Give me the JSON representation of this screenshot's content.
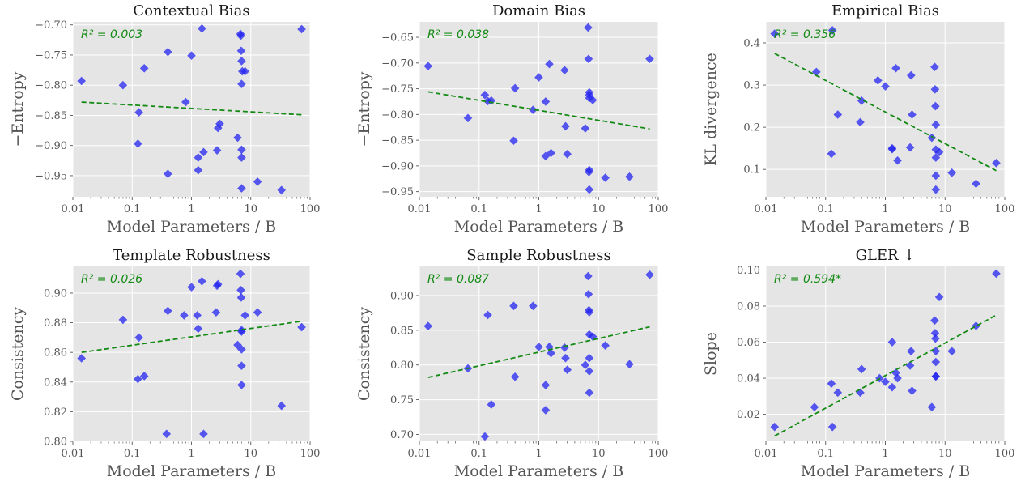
{
  "figure": {
    "colors": {
      "point": "#2323f0",
      "trend": "#138a13",
      "panel_bg": "#e5e5e5",
      "grid": "#ffffff"
    }
  },
  "chart_data": [
    {
      "type": "scatter",
      "title": "Contextual Bias",
      "xlabel": "Model Parameters / B",
      "ylabel": "−Entropy",
      "x_scale": "log",
      "xlim": [
        0.01,
        100
      ],
      "ylim": [
        -0.985,
        -0.695
      ],
      "xticks": [
        0.01,
        0.1,
        1,
        10,
        100
      ],
      "xtick_labels": [
        "0.01",
        "0.1",
        "1",
        "10",
        "100"
      ],
      "yticks": [
        -0.95,
        -0.9,
        -0.85,
        -0.8,
        -0.75,
        -0.7
      ],
      "ytick_labels": [
        "−0.95",
        "−0.90",
        "−0.85",
        "−0.80",
        "−0.75",
        "−0.70"
      ],
      "annotation": "R² = 0.003",
      "trend": {
        "x": [
          0.014,
          72
        ],
        "y": [
          -0.828,
          -0.849
        ]
      },
      "points": [
        [
          0.014,
          -0.793
        ],
        [
          0.07,
          -0.8
        ],
        [
          0.125,
          -0.897
        ],
        [
          0.13,
          -0.845
        ],
        [
          0.16,
          -0.772
        ],
        [
          0.4,
          -0.745
        ],
        [
          0.4,
          -0.947
        ],
        [
          0.8,
          -0.828
        ],
        [
          1.0,
          -0.751
        ],
        [
          1.3,
          -0.92
        ],
        [
          1.3,
          -0.941
        ],
        [
          1.5,
          -0.706
        ],
        [
          1.6,
          -0.911
        ],
        [
          2.7,
          -0.908
        ],
        [
          2.8,
          -0.871
        ],
        [
          3.0,
          -0.864
        ],
        [
          6.0,
          -0.887
        ],
        [
          6.7,
          -0.715
        ],
        [
          6.8,
          -0.718
        ],
        [
          6.9,
          -0.743
        ],
        [
          7.0,
          -0.76
        ],
        [
          7.0,
          -0.798
        ],
        [
          7.0,
          -0.907
        ],
        [
          7.0,
          -0.92
        ],
        [
          7.0,
          -0.971
        ],
        [
          7.2,
          -0.777
        ],
        [
          8.0,
          -0.777
        ],
        [
          13.0,
          -0.96
        ],
        [
          33.0,
          -0.974
        ],
        [
          72.0,
          -0.707
        ]
      ]
    },
    {
      "type": "scatter",
      "title": "Domain Bias",
      "xlabel": "Model Parameters / B",
      "ylabel": "−Entropy",
      "x_scale": "log",
      "xlim": [
        0.01,
        100
      ],
      "ylim": [
        -0.96,
        -0.62
      ],
      "xticks": [
        0.01,
        0.1,
        1,
        10,
        100
      ],
      "xtick_labels": [
        "0.01",
        "0.1",
        "1",
        "10",
        "100"
      ],
      "yticks": [
        -0.95,
        -0.9,
        -0.85,
        -0.8,
        -0.75,
        -0.7,
        -0.65
      ],
      "ytick_labels": [
        "−0.95",
        "−0.90",
        "−0.85",
        "−0.80",
        "−0.75",
        "−0.70",
        "−0.65"
      ],
      "annotation": "R² = 0.038",
      "trend": {
        "x": [
          0.014,
          72
        ],
        "y": [
          -0.756,
          -0.828
        ]
      },
      "points": [
        [
          0.014,
          -0.706
        ],
        [
          0.065,
          -0.807
        ],
        [
          0.125,
          -0.762
        ],
        [
          0.14,
          -0.774
        ],
        [
          0.16,
          -0.773
        ],
        [
          0.38,
          -0.851
        ],
        [
          0.4,
          -0.749
        ],
        [
          0.8,
          -0.791
        ],
        [
          1.0,
          -0.728
        ],
        [
          1.3,
          -0.881
        ],
        [
          1.3,
          -0.775
        ],
        [
          1.5,
          -0.702
        ],
        [
          1.6,
          -0.875
        ],
        [
          2.7,
          -0.714
        ],
        [
          2.8,
          -0.823
        ],
        [
          3.0,
          -0.877
        ],
        [
          6.0,
          -0.827
        ],
        [
          6.7,
          -0.631
        ],
        [
          6.8,
          -0.692
        ],
        [
          6.9,
          -0.912
        ],
        [
          7.0,
          -0.908
        ],
        [
          7.0,
          -0.946
        ],
        [
          7.0,
          -0.757
        ],
        [
          7.0,
          -0.762
        ],
        [
          7.0,
          -0.768
        ],
        [
          8.0,
          -0.772
        ],
        [
          13.0,
          -0.923
        ],
        [
          33.0,
          -0.921
        ],
        [
          72.0,
          -0.692
        ]
      ]
    },
    {
      "type": "scatter",
      "title": "Empirical Bias",
      "xlabel": "Model Parameters / B",
      "ylabel": "KL divergence",
      "x_scale": "log",
      "xlim": [
        0.01,
        100
      ],
      "ylim": [
        0.035,
        0.45
      ],
      "xticks": [
        0.01,
        0.1,
        1,
        10,
        100
      ],
      "xtick_labels": [
        "0.01",
        "0.1",
        "1",
        "10",
        "100"
      ],
      "yticks": [
        0.1,
        0.2,
        0.3,
        0.4
      ],
      "ytick_labels": [
        "0.1",
        "0.2",
        "0.3",
        "0.4"
      ],
      "annotation": "R² = 0.356",
      "trend": {
        "x": [
          0.014,
          72
        ],
        "y": [
          0.375,
          0.097
        ]
      },
      "points": [
        [
          0.014,
          0.422
        ],
        [
          0.07,
          0.331
        ],
        [
          0.125,
          0.137
        ],
        [
          0.13,
          0.43
        ],
        [
          0.16,
          0.23
        ],
        [
          0.38,
          0.212
        ],
        [
          0.4,
          0.263
        ],
        [
          0.75,
          0.311
        ],
        [
          1.0,
          0.297
        ],
        [
          1.3,
          0.15
        ],
        [
          1.3,
          0.148
        ],
        [
          1.5,
          0.34
        ],
        [
          1.6,
          0.121
        ],
        [
          2.6,
          0.152
        ],
        [
          2.7,
          0.323
        ],
        [
          2.8,
          0.23
        ],
        [
          6.0,
          0.175
        ],
        [
          6.7,
          0.343
        ],
        [
          6.8,
          0.29
        ],
        [
          6.9,
          0.25
        ],
        [
          7.0,
          0.206
        ],
        [
          7.0,
          0.147
        ],
        [
          7.0,
          0.128
        ],
        [
          7.0,
          0.085
        ],
        [
          7.0,
          0.052
        ],
        [
          8.0,
          0.141
        ],
        [
          13.0,
          0.092
        ],
        [
          33.0,
          0.066
        ],
        [
          72.0,
          0.115
        ]
      ]
    },
    {
      "type": "scatter",
      "title": "Template Robustness",
      "xlabel": "Model Parameters / B",
      "ylabel": "Consistency",
      "x_scale": "log",
      "xlim": [
        0.01,
        100
      ],
      "ylim": [
        0.8,
        0.918
      ],
      "xticks": [
        0.01,
        0.1,
        1,
        10,
        100
      ],
      "xtick_labels": [
        "0.01",
        "0.1",
        "1",
        "10",
        "100"
      ],
      "yticks": [
        0.8,
        0.82,
        0.84,
        0.86,
        0.88,
        0.9
      ],
      "ytick_labels": [
        "0.80",
        "0.82",
        "0.84",
        "0.86",
        "0.88",
        "0.90"
      ],
      "annotation": "R² = 0.026",
      "trend": {
        "x": [
          0.014,
          72
        ],
        "y": [
          0.86,
          0.881
        ]
      },
      "points": [
        [
          0.014,
          0.856
        ],
        [
          0.07,
          0.882
        ],
        [
          0.125,
          0.842
        ],
        [
          0.13,
          0.87
        ],
        [
          0.16,
          0.844
        ],
        [
          0.38,
          0.805
        ],
        [
          0.4,
          0.888
        ],
        [
          0.75,
          0.885
        ],
        [
          1.0,
          0.904
        ],
        [
          1.25,
          0.885
        ],
        [
          1.3,
          0.876
        ],
        [
          1.5,
          0.908
        ],
        [
          1.6,
          0.805
        ],
        [
          2.6,
          0.887
        ],
        [
          2.7,
          0.905
        ],
        [
          2.8,
          0.906
        ],
        [
          6.0,
          0.865
        ],
        [
          6.7,
          0.913
        ],
        [
          6.8,
          0.902
        ],
        [
          6.9,
          0.897
        ],
        [
          7.0,
          0.875
        ],
        [
          7.0,
          0.874
        ],
        [
          7.0,
          0.862
        ],
        [
          7.0,
          0.851
        ],
        [
          7.0,
          0.838
        ],
        [
          8.0,
          0.885
        ],
        [
          13.0,
          0.887
        ],
        [
          33.0,
          0.824
        ],
        [
          72.0,
          0.877
        ]
      ]
    },
    {
      "type": "scatter",
      "title": "Sample Robustness",
      "xlabel": "Model Parameters / B",
      "ylabel": "Consistency",
      "x_scale": "log",
      "xlim": [
        0.01,
        100
      ],
      "ylim": [
        0.69,
        0.942
      ],
      "xticks": [
        0.01,
        0.1,
        1,
        10,
        100
      ],
      "xtick_labels": [
        "0.01",
        "0.1",
        "1",
        "10",
        "100"
      ],
      "yticks": [
        0.7,
        0.75,
        0.8,
        0.85,
        0.9
      ],
      "ytick_labels": [
        "0.70",
        "0.75",
        "0.80",
        "0.85",
        "0.90"
      ],
      "annotation": "R² = 0.087",
      "trend": {
        "x": [
          0.014,
          72
        ],
        "y": [
          0.782,
          0.855
        ]
      },
      "points": [
        [
          0.014,
          0.856
        ],
        [
          0.065,
          0.795
        ],
        [
          0.125,
          0.697
        ],
        [
          0.14,
          0.872
        ],
        [
          0.16,
          0.743
        ],
        [
          0.38,
          0.885
        ],
        [
          0.4,
          0.783
        ],
        [
          0.8,
          0.885
        ],
        [
          1.0,
          0.826
        ],
        [
          1.3,
          0.771
        ],
        [
          1.3,
          0.735
        ],
        [
          1.5,
          0.826
        ],
        [
          1.6,
          0.817
        ],
        [
          2.7,
          0.825
        ],
        [
          2.8,
          0.81
        ],
        [
          3.0,
          0.793
        ],
        [
          6.0,
          0.8
        ],
        [
          6.7,
          0.928
        ],
        [
          6.8,
          0.902
        ],
        [
          6.9,
          0.879
        ],
        [
          7.0,
          0.876
        ],
        [
          7.0,
          0.844
        ],
        [
          7.0,
          0.81
        ],
        [
          7.0,
          0.791
        ],
        [
          7.0,
          0.76
        ],
        [
          8.0,
          0.841
        ],
        [
          13.0,
          0.828
        ],
        [
          33.0,
          0.801
        ],
        [
          72.0,
          0.93
        ]
      ]
    },
    {
      "type": "scatter",
      "title": "GLER ↓",
      "xlabel": "Model Parameters / B",
      "ylabel": "Slope",
      "x_scale": "log",
      "xlim": [
        0.01,
        100
      ],
      "ylim": [
        0.005,
        0.102
      ],
      "xticks": [
        0.01,
        0.1,
        1,
        10,
        100
      ],
      "xtick_labels": [
        "0.01",
        "0.1",
        "1",
        "10",
        "100"
      ],
      "yticks": [
        0.02,
        0.04,
        0.06,
        0.08,
        0.1
      ],
      "ytick_labels": [
        "0.02",
        "0.04",
        "0.06",
        "0.08",
        "0.10"
      ],
      "annotation": "R² = 0.594*",
      "trend": {
        "x": [
          0.014,
          72
        ],
        "y": [
          0.008,
          0.075
        ]
      },
      "points": [
        [
          0.014,
          0.013
        ],
        [
          0.065,
          0.024
        ],
        [
          0.125,
          0.037
        ],
        [
          0.13,
          0.013
        ],
        [
          0.16,
          0.032
        ],
        [
          0.38,
          0.032
        ],
        [
          0.4,
          0.045
        ],
        [
          0.8,
          0.04
        ],
        [
          1.0,
          0.038
        ],
        [
          1.3,
          0.06
        ],
        [
          1.3,
          0.035
        ],
        [
          1.5,
          0.043
        ],
        [
          1.6,
          0.04
        ],
        [
          2.6,
          0.047
        ],
        [
          2.7,
          0.055
        ],
        [
          2.8,
          0.033
        ],
        [
          6.0,
          0.024
        ],
        [
          6.7,
          0.072
        ],
        [
          6.8,
          0.065
        ],
        [
          6.9,
          0.062
        ],
        [
          7.0,
          0.055
        ],
        [
          7.0,
          0.049
        ],
        [
          7.0,
          0.041
        ],
        [
          7.0,
          0.041
        ],
        [
          8.0,
          0.085
        ],
        [
          13.0,
          0.055
        ],
        [
          33.0,
          0.069
        ],
        [
          72.0,
          0.098
        ]
      ]
    }
  ]
}
